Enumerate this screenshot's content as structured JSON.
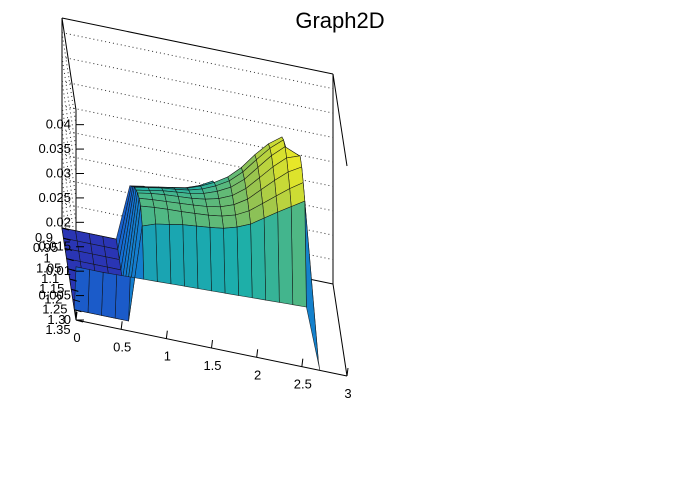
{
  "chart_data": {
    "type": "surface",
    "title": "Graph2D",
    "xlabel": "",
    "ylabel": "",
    "zlabel": "",
    "x_ticks": [
      "0",
      "0.5",
      "1",
      "1.5",
      "2",
      "2.5",
      "3"
    ],
    "y_ticks": [
      "0.9",
      "0.95",
      "1",
      "1.05",
      "1.1",
      "1.15",
      "1.2",
      "1.25",
      "1.3",
      "1.35"
    ],
    "z_ticks": [
      "0",
      "0.005",
      "0.01",
      "0.015",
      "0.02",
      "0.025",
      "0.03",
      "0.035",
      "0.04"
    ],
    "xlim": [
      0,
      3
    ],
    "ylim": [
      0.9,
      1.35
    ],
    "zlim": [
      0,
      0.043
    ],
    "grid": true,
    "colormap": "viridis-like (blue-teal-green-yellow)",
    "surface_rows_x": [
      0.0,
      0.15,
      0.3,
      0.45,
      0.6,
      0.75,
      0.9,
      1.05,
      1.2,
      1.35,
      1.5,
      1.65,
      1.8,
      1.95,
      2.1,
      2.25,
      2.4,
      2.55,
      2.7
    ],
    "surface_cols_y": [
      0.9,
      0.95,
      1.0,
      1.05,
      1.1,
      1.15,
      1.2,
      1.25,
      1.3,
      1.35
    ],
    "surface_values_z": [
      [
        0.0,
        0.0,
        0.0,
        0.0,
        0.0,
        0.0,
        0.0,
        0.0,
        0.0,
        0.0109
      ],
      [
        0.0,
        0.0,
        0.0,
        0.0,
        0.0,
        0.0,
        0.0,
        0.0,
        0.0,
        0.0109
      ],
      [
        0.0,
        0.0,
        0.0,
        0.0,
        0.0,
        0.0,
        0.0,
        0.0,
        0.0,
        0.0109
      ],
      [
        0.0,
        0.0,
        0.0,
        0.0,
        0.0,
        0.0,
        0.0,
        0.0,
        0.0,
        0.011
      ],
      [
        0.0,
        0.0,
        0.0,
        0.0,
        0.0,
        0.0,
        0.0,
        0.0,
        0.0,
        0.0111
      ],
      [
        0.0115,
        0.0135,
        0.0155,
        0.0175,
        0.019,
        0.0205,
        0.0215,
        0.022,
        0.02,
        0.0112
      ],
      [
        0.012,
        0.014,
        0.016,
        0.018,
        0.0195,
        0.021,
        0.0218,
        0.0223,
        0.021,
        0.0113
      ],
      [
        0.0,
        0.0145,
        0.0165,
        0.0185,
        0.02,
        0.0213,
        0.022,
        0.0225,
        0.0215,
        0.0114
      ],
      [
        0.0,
        0.015,
        0.017,
        0.0188,
        0.0203,
        0.0215,
        0.0222,
        0.0226,
        0.022,
        0.0115
      ],
      [
        0.0,
        0.0155,
        0.0175,
        0.0192,
        0.0206,
        0.0217,
        0.0224,
        0.0228,
        0.0223,
        0.0116
      ],
      [
        0.0,
        0.0165,
        0.0185,
        0.02,
        0.0212,
        0.0221,
        0.0227,
        0.023,
        0.0226,
        0.0117
      ],
      [
        0.0,
        0.018,
        0.0198,
        0.0212,
        0.0222,
        0.0228,
        0.0232,
        0.0234,
        0.023,
        0.0118
      ],
      [
        0.0,
        0.0,
        0.0215,
        0.0228,
        0.0236,
        0.024,
        0.0242,
        0.0242,
        0.0238,
        0.0119
      ],
      [
        0.0,
        0.0,
        0.024,
        0.0252,
        0.0258,
        0.026,
        0.0259,
        0.0256,
        0.025,
        0.012
      ],
      [
        0.0,
        0.0,
        0.0272,
        0.0283,
        0.0288,
        0.0288,
        0.0284,
        0.0277,
        0.0268,
        0.0121
      ],
      [
        0.0,
        0.0,
        0.03,
        0.0312,
        0.0318,
        0.0316,
        0.0309,
        0.0298,
        0.0286,
        0.0122
      ],
      [
        0.0,
        0.0,
        0.032,
        0.0335,
        0.0342,
        0.034,
        0.0332,
        0.0319,
        0.0303,
        0.0123
      ],
      [
        0.0,
        0.0,
        0.015,
        0.025,
        0.033,
        0.035,
        0.0348,
        0.0337,
        0.032,
        0.0124
      ],
      [
        0.0,
        0.0,
        0.0,
        0.0,
        0.0,
        0.0,
        0.0,
        0.0,
        0.0,
        0.0
      ]
    ]
  }
}
